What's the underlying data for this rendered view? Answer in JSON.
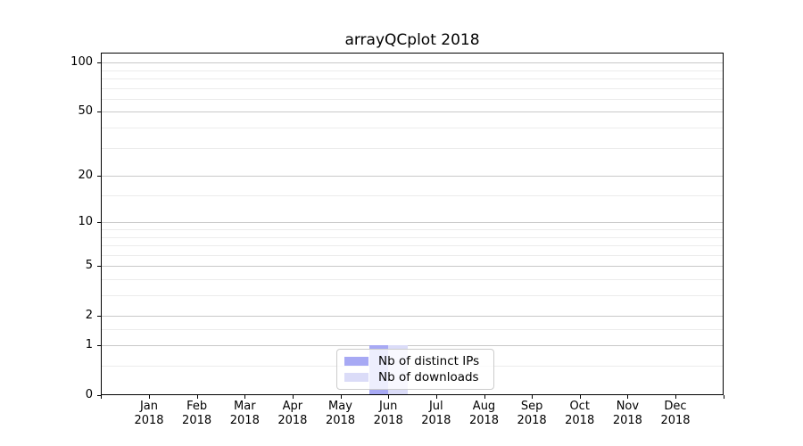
{
  "chart_data": {
    "type": "bar",
    "title": "arrayQCplot 2018",
    "year": "2018",
    "categories": [
      "Jan",
      "Feb",
      "Mar",
      "Apr",
      "May",
      "Jun",
      "Jul",
      "Aug",
      "Sep",
      "Oct",
      "Nov",
      "Dec"
    ],
    "series": [
      {
        "name": "Nb of distinct IPs",
        "color": "#a7a9f4",
        "values": [
          0,
          0,
          0,
          0,
          0,
          1,
          0,
          0,
          0,
          0,
          0,
          0
        ]
      },
      {
        "name": "Nb of downloads",
        "color": "#dbdcf8",
        "values": [
          0,
          0,
          0,
          0,
          0,
          1,
          0,
          0,
          0,
          0,
          0,
          0
        ]
      }
    ],
    "y_axis": {
      "scale": "log1p",
      "tick_values": [
        0,
        1,
        2,
        5,
        10,
        20,
        50,
        100
      ],
      "tick_labels": [
        "0",
        "1",
        "2",
        "5",
        "10",
        "20",
        "50",
        "100"
      ],
      "minor_gridlines": [
        0.5,
        1.5,
        3,
        4,
        6,
        7,
        8,
        9,
        15,
        30,
        40,
        60,
        70,
        80,
        90
      ],
      "ylim": [
        0,
        115
      ]
    },
    "legend": {
      "position": "lower center"
    },
    "grid": {
      "major_color": "#c9c9c9",
      "minor_color": "#ececec"
    },
    "axis_color": "#000000",
    "background_color": "#ffffff"
  }
}
